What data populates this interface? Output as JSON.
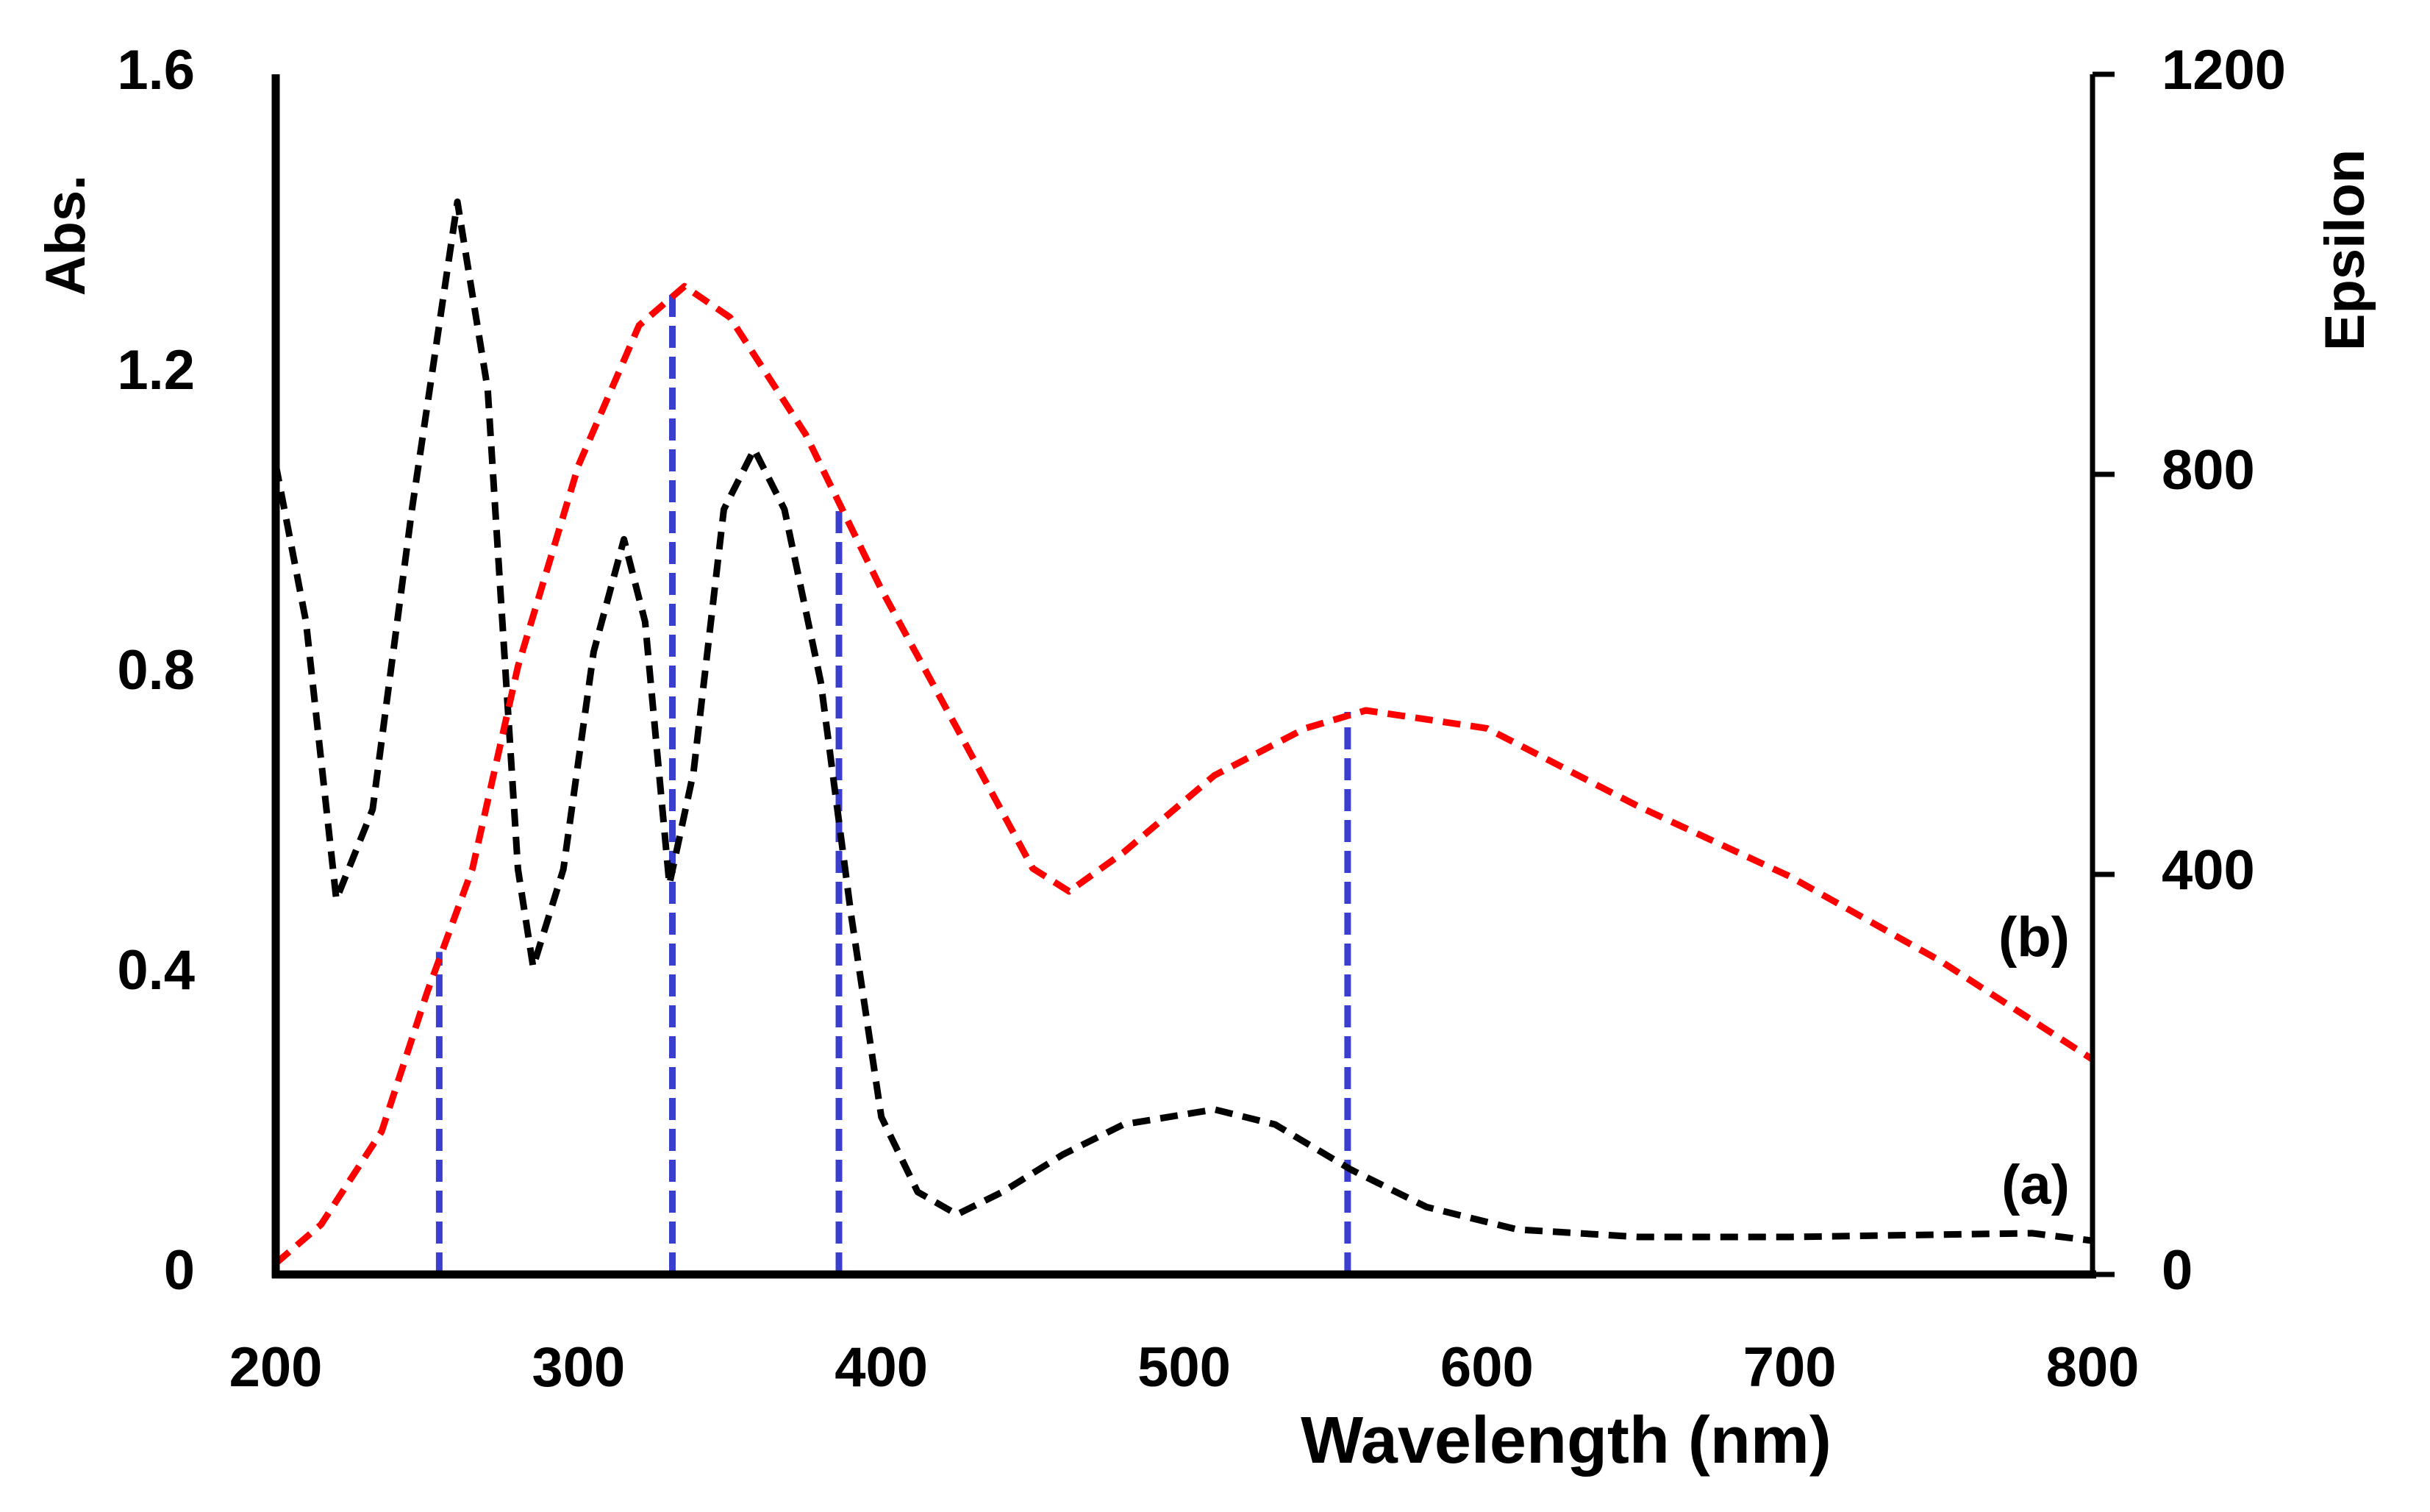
{
  "chart_data": {
    "type": "line",
    "xlabel": "Wavelength (nm)",
    "ylabel": "Abs.",
    "y2label": "Epsilon",
    "xlim": [
      200,
      800
    ],
    "xticks": [
      200,
      300,
      400,
      500,
      600,
      700,
      800
    ],
    "ylim": [
      0,
      1.6
    ],
    "yticks": [
      0,
      0.4,
      0.8,
      1.2,
      1.6
    ],
    "y2lim": [
      0,
      1200
    ],
    "y2ticks": [
      0,
      400,
      800,
      1200
    ],
    "series": [
      {
        "name": "(a)",
        "color": "#000000",
        "x": [
          200,
          210,
          220,
          232,
          245,
          260,
          270,
          280,
          285,
          295,
          305,
          315,
          322,
          330,
          338,
          348,
          358,
          368,
          380,
          390,
          400,
          412,
          425,
          440,
          460,
          480,
          510,
          530,
          555,
          580,
          610,
          650,
          700,
          780,
          800
        ],
        "values": [
          1.08,
          0.87,
          0.5,
          0.62,
          1.02,
          1.43,
          1.18,
          0.54,
          0.41,
          0.54,
          0.83,
          0.98,
          0.87,
          0.52,
          0.67,
          1.02,
          1.1,
          1.02,
          0.79,
          0.48,
          0.21,
          0.11,
          0.08,
          0.11,
          0.16,
          0.2,
          0.22,
          0.2,
          0.14,
          0.09,
          0.06,
          0.05,
          0.05,
          0.055,
          0.045
        ]
      },
      {
        "name": "(b)",
        "color": "#ff0000",
        "axis": "y2",
        "x": [
          200,
          215,
          235,
          250,
          265,
          280,
          300,
          320,
          335,
          350,
          375,
          400,
          425,
          450,
          462,
          480,
          510,
          540,
          560,
          600,
          650,
          700,
          750,
          800
        ],
        "values": [
          11,
          50,
          143,
          282,
          406,
          608,
          809,
          949,
          988,
          957,
          840,
          685,
          546,
          406,
          383,
          422,
          499,
          546,
          564,
          546,
          468,
          398,
          313,
          215
        ]
      }
    ],
    "vlines": {
      "color": "#3a3fd0",
      "x": [
        254,
        331,
        386,
        554
      ],
      "top": [
        0.43,
        1.31,
        1.03,
        0.75
      ]
    }
  }
}
